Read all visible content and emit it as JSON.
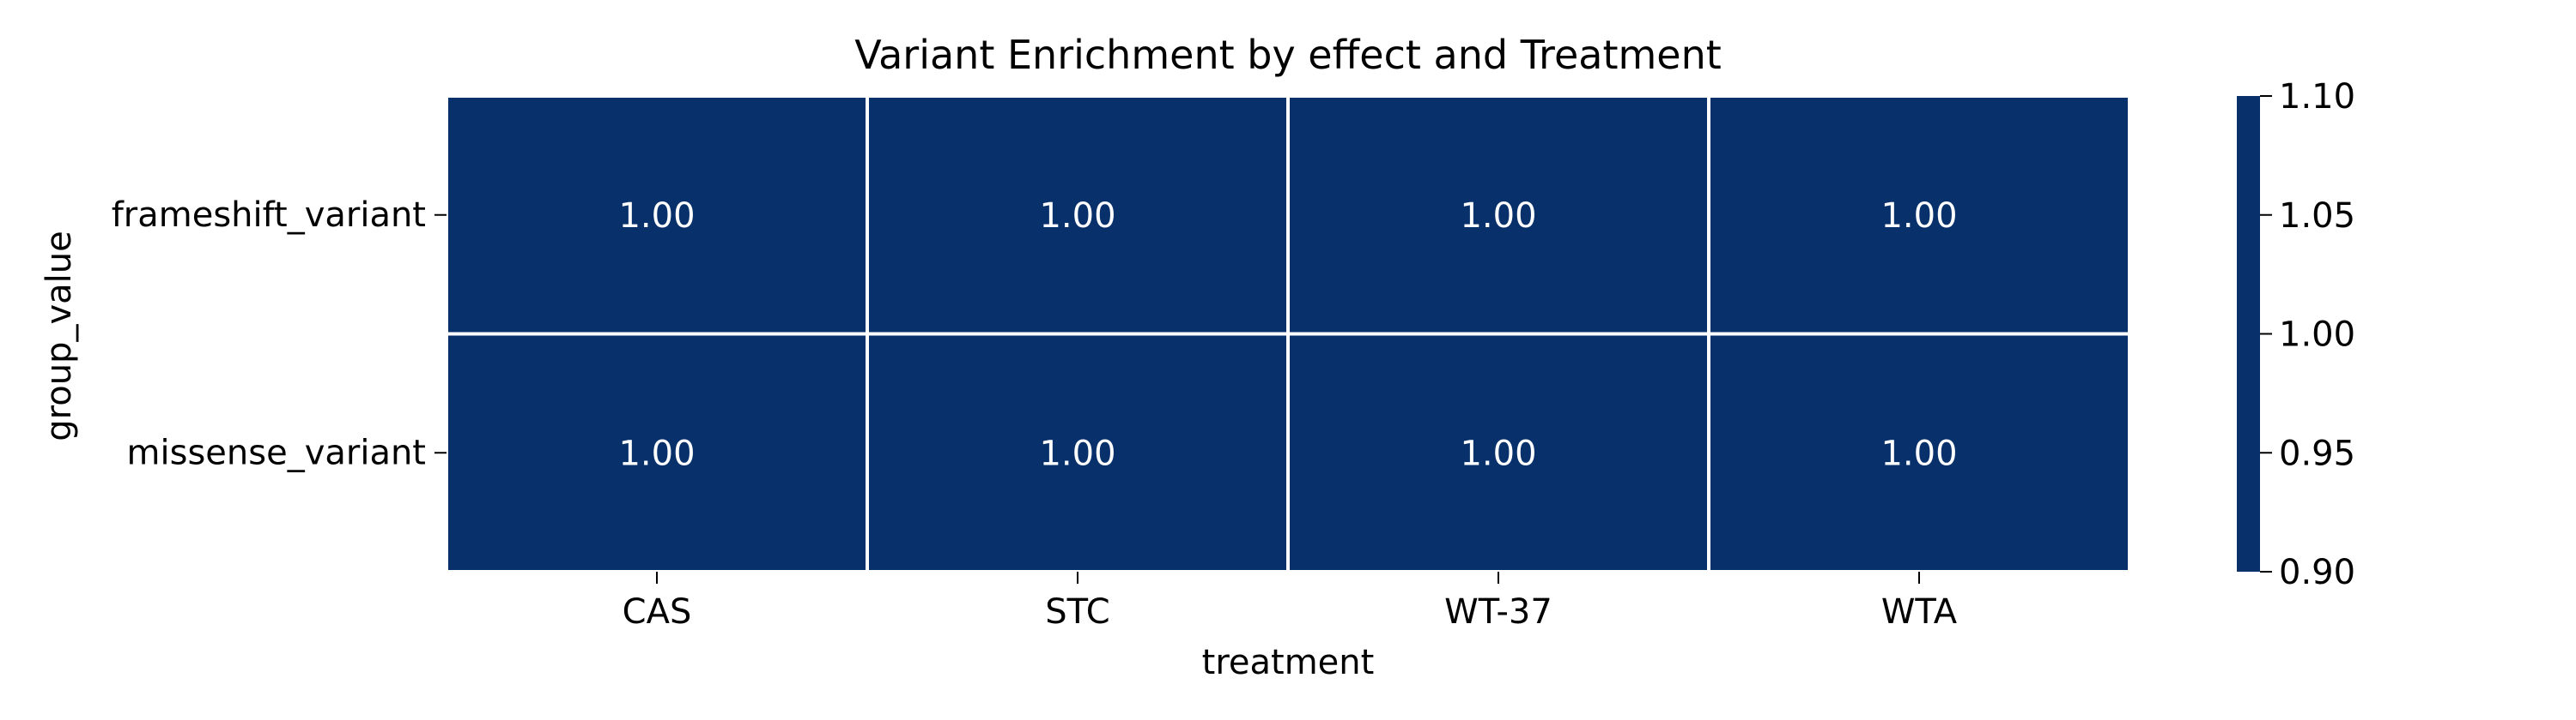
{
  "chart_data": {
    "type": "heatmap",
    "title": "Variant Enrichment by effect and Treatment",
    "xlabel": "treatment",
    "ylabel": "group_value",
    "x_categories": [
      "CAS",
      "STC",
      "WT-37",
      "WTA"
    ],
    "y_categories": [
      "frameshift_variant",
      "missense_variant"
    ],
    "values": [
      [
        1.0,
        1.0,
        1.0,
        1.0
      ],
      [
        1.0,
        1.0,
        1.0,
        1.0
      ]
    ],
    "cell_labels": [
      [
        "1.00",
        "1.00",
        "1.00",
        "1.00"
      ],
      [
        "1.00",
        "1.00",
        "1.00",
        "1.00"
      ]
    ],
    "colorbar": {
      "range": [
        0.9,
        1.1
      ],
      "ticks": [
        "1.10",
        "1.05",
        "1.00",
        "0.95",
        "0.90"
      ],
      "color": "#08306b"
    },
    "cell_color": "#08306b",
    "grid_line_color": "#ffffff"
  }
}
